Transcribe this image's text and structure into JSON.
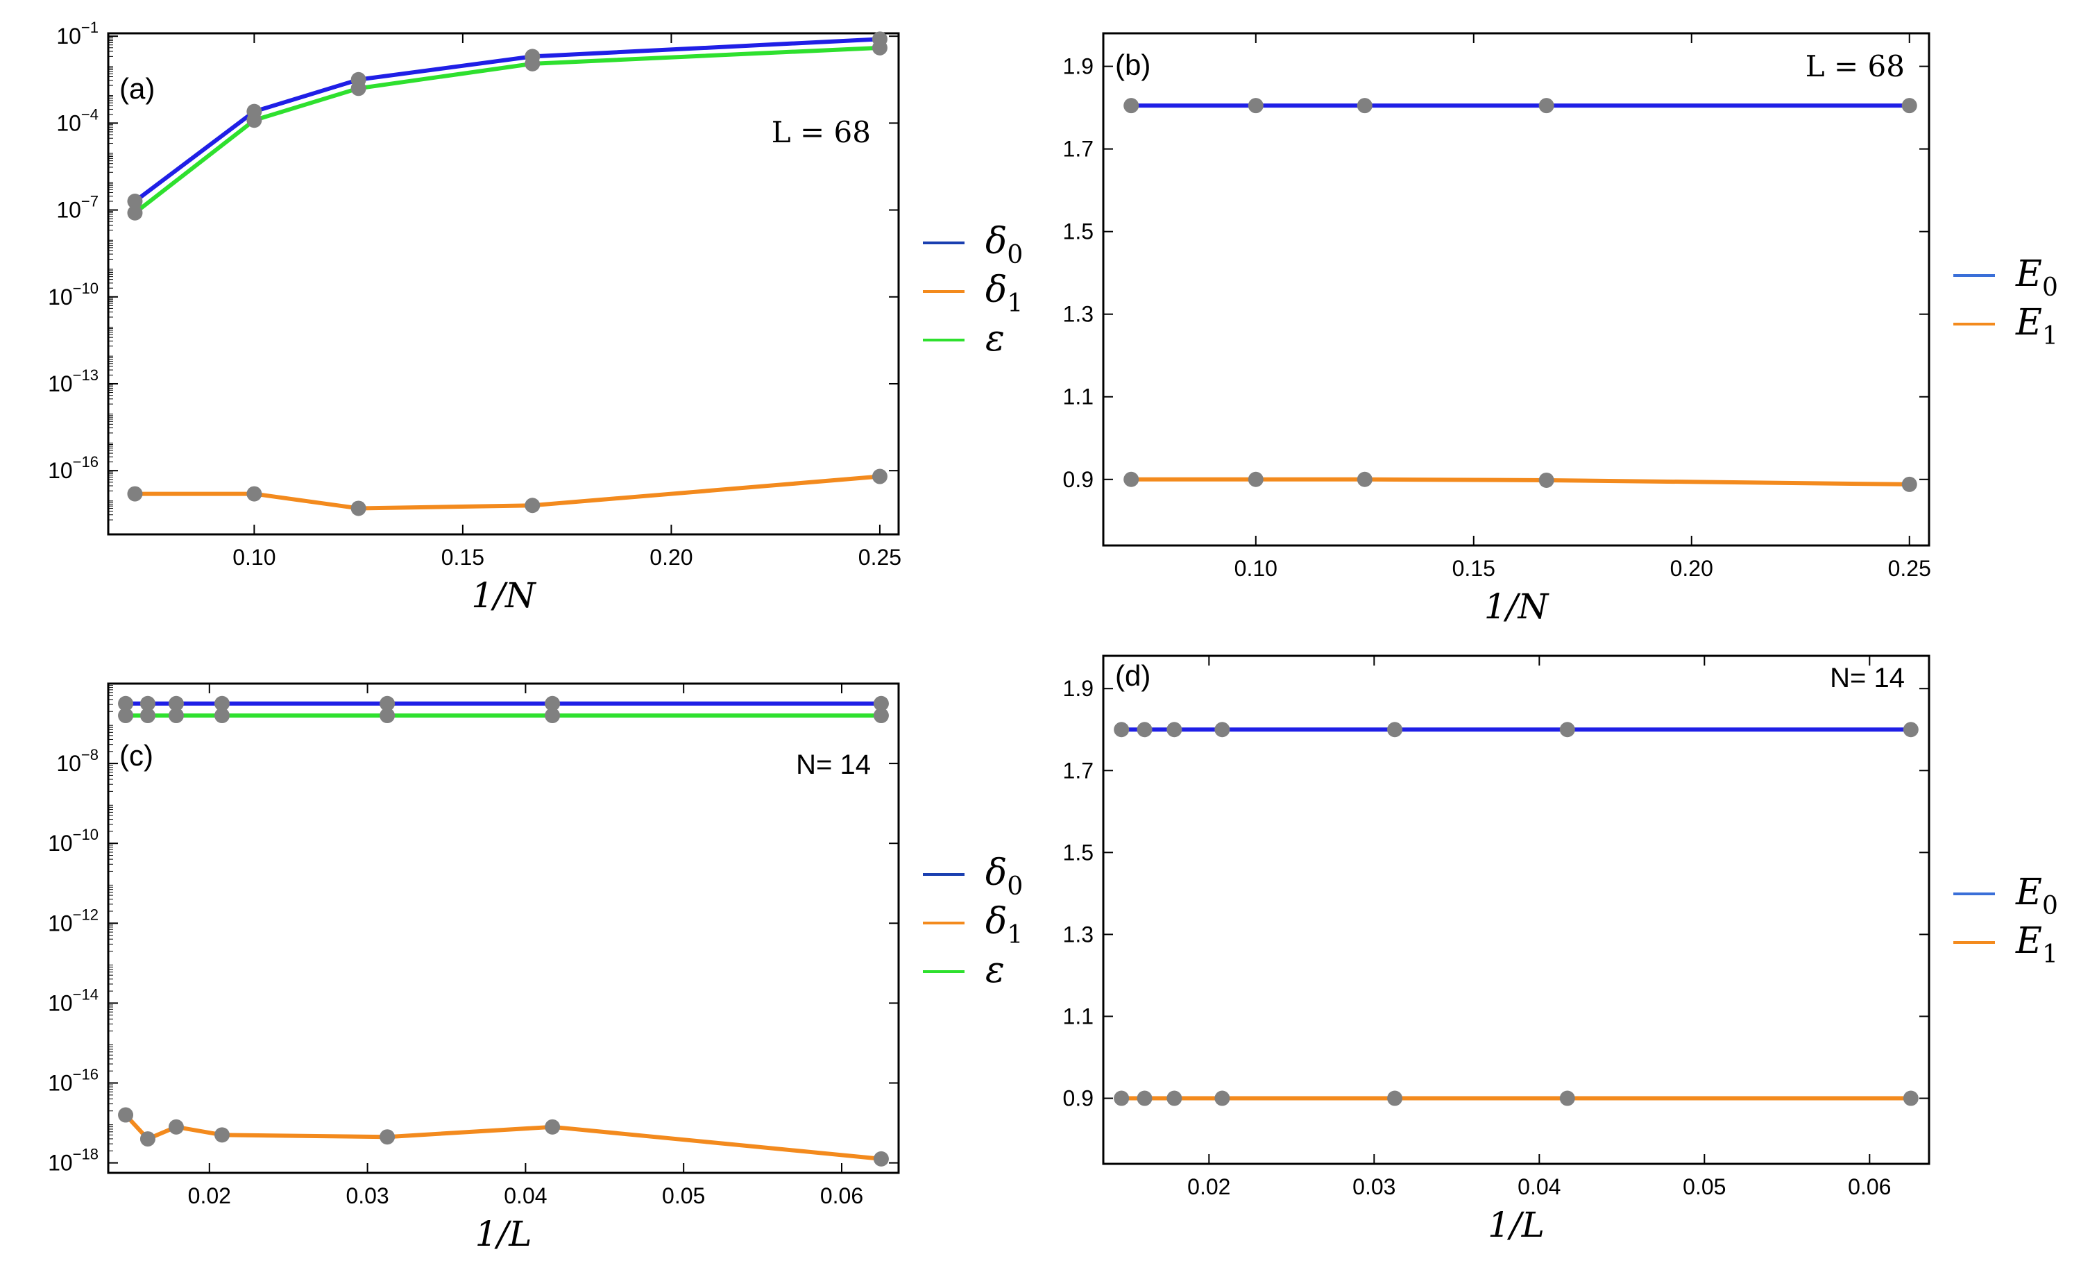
{
  "colors": {
    "delta0": "#1f1fe6",
    "delta1": "#f38a1d",
    "epsilon": "#2ee02e",
    "E0": "#1f1fe6",
    "E1": "#f38a1d",
    "marker": "#808080",
    "legend_E0": "#3a6fd8"
  },
  "chart_data": [
    {
      "id": "a",
      "type": "line",
      "scale": "log",
      "panel_label": "(a)",
      "annotation": "L = 68",
      "xlabel": "1/N",
      "x": [
        0.0714,
        0.1,
        0.125,
        0.1667,
        0.25
      ],
      "xlim": [
        0.065,
        0.2545
      ],
      "xticks": [
        0.1,
        0.15,
        0.2,
        0.25
      ],
      "xtick_labels": [
        "0.10",
        "0.15",
        "0.20",
        "0.25"
      ],
      "ylim_log10": [
        -18.2,
        -0.9
      ],
      "yticks_log10": [
        -1,
        -4,
        -7,
        -10,
        -13,
        -16
      ],
      "ytick_labels": [
        "10",
        "10",
        "10",
        "10",
        "10",
        "10"
      ],
      "ytick_exponents": [
        "−1",
        "−4",
        "−7",
        "−10",
        "−13",
        "−16"
      ],
      "series": [
        {
          "name": "δ0",
          "key": "delta0",
          "log10": [
            -6.7,
            -3.6,
            -2.5,
            -1.7,
            -1.1
          ]
        },
        {
          "name": "δ1",
          "key": "delta1",
          "log10": [
            -16.8,
            -16.8,
            -17.3,
            -17.2,
            -16.2
          ]
        },
        {
          "name": "ε",
          "key": "epsilon",
          "log10": [
            -7.1,
            -3.9,
            -2.8,
            -1.95,
            -1.4
          ]
        }
      ],
      "legend": [
        "δ0",
        "δ1",
        "ε"
      ]
    },
    {
      "id": "b",
      "type": "line",
      "scale": "linear",
      "panel_label": "(b)",
      "annotation": "L = 68",
      "xlabel": "1/N",
      "x": [
        0.0714,
        0.1,
        0.125,
        0.1667,
        0.25
      ],
      "xlim": [
        0.065,
        0.2545
      ],
      "xticks": [
        0.1,
        0.15,
        0.2,
        0.25
      ],
      "xtick_labels": [
        "0.10",
        "0.15",
        "0.20",
        "0.25"
      ],
      "ylim": [
        0.74,
        1.98
      ],
      "yticks": [
        0.9,
        1.1,
        1.3,
        1.5,
        1.7,
        1.9
      ],
      "ytick_labels": [
        "0.9",
        "1.1",
        "1.3",
        "1.5",
        "1.7",
        "1.9"
      ],
      "series": [
        {
          "name": "E0",
          "key": "E0",
          "values": [
            1.805,
            1.805,
            1.805,
            1.805,
            1.805
          ]
        },
        {
          "name": "E1",
          "key": "E1",
          "values": [
            0.9,
            0.9,
            0.9,
            0.898,
            0.888
          ]
        }
      ],
      "legend": [
        "E0",
        "E1"
      ]
    },
    {
      "id": "c",
      "type": "line",
      "scale": "log",
      "panel_label": "(c)",
      "annotation": "N= 14",
      "xlabel": "1/L",
      "x": [
        0.0147,
        0.0161,
        0.0179,
        0.0208,
        0.03125,
        0.0417,
        0.0625
      ],
      "xlim": [
        0.0136,
        0.0636
      ],
      "xticks": [
        0.02,
        0.03,
        0.04,
        0.05,
        0.06
      ],
      "xtick_labels": [
        "0.02",
        "0.03",
        "0.04",
        "0.05",
        "0.06"
      ],
      "ylim_log10": [
        -18.25,
        -6.0
      ],
      "yticks_log10": [
        -8,
        -10,
        -12,
        -14,
        -16,
        -18
      ],
      "ytick_labels": [
        "10",
        "10",
        "10",
        "10",
        "10",
        "10"
      ],
      "ytick_exponents": [
        "−8",
        "−10",
        "−12",
        "−14",
        "−16",
        "−18"
      ],
      "series": [
        {
          "name": "δ0",
          "key": "delta0",
          "log10": [
            -6.5,
            -6.5,
            -6.5,
            -6.5,
            -6.5,
            -6.5,
            -6.5
          ]
        },
        {
          "name": "δ1",
          "key": "delta1",
          "log10": [
            -16.8,
            -17.4,
            -17.1,
            -17.3,
            -17.35,
            -17.1,
            -17.9
          ]
        },
        {
          "name": "ε",
          "key": "epsilon",
          "log10": [
            -6.8,
            -6.8,
            -6.8,
            -6.8,
            -6.8,
            -6.8,
            -6.8
          ]
        }
      ],
      "legend": [
        "δ0",
        "δ1",
        "ε"
      ]
    },
    {
      "id": "d",
      "type": "line",
      "scale": "linear",
      "panel_label": "(d)",
      "annotation": "N= 14",
      "xlabel": "1/L",
      "x": [
        0.0147,
        0.0161,
        0.0179,
        0.0208,
        0.03125,
        0.0417,
        0.0625
      ],
      "xlim": [
        0.0136,
        0.0636
      ],
      "xticks": [
        0.02,
        0.03,
        0.04,
        0.05,
        0.06
      ],
      "xtick_labels": [
        "0.02",
        "0.03",
        "0.04",
        "0.05",
        "0.06"
      ],
      "ylim": [
        0.74,
        1.98
      ],
      "yticks": [
        0.9,
        1.1,
        1.3,
        1.5,
        1.7,
        1.9
      ],
      "ytick_labels": [
        "0.9",
        "1.1",
        "1.3",
        "1.5",
        "1.7",
        "1.9"
      ],
      "series": [
        {
          "name": "E0",
          "key": "E0",
          "values": [
            1.8,
            1.8,
            1.8,
            1.8,
            1.8,
            1.8,
            1.8
          ]
        },
        {
          "name": "E1",
          "key": "E1",
          "values": [
            0.9,
            0.9,
            0.9,
            0.9,
            0.9,
            0.9,
            0.9
          ]
        }
      ],
      "legend": [
        "E0",
        "E1"
      ]
    }
  ]
}
